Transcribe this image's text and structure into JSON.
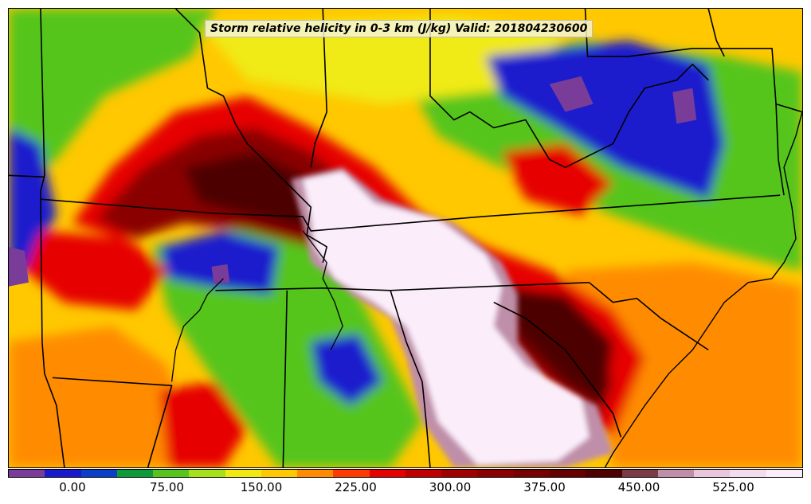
{
  "title": "Storm relative helicity in 0-3 km (J/kg) Valid: 201804230600",
  "colorbar": {
    "colors": [
      "#7a3c99",
      "#1a1acd",
      "#0a3fc8",
      "#0f9a3a",
      "#55c51e",
      "#a6e019",
      "#f0ea12",
      "#ffc800",
      "#ff8c00",
      "#ff3a00",
      "#e60000",
      "#c00000",
      "#a00000",
      "#8a0000",
      "#760000",
      "#640000",
      "#4e0000",
      "#7a3a46",
      "#bf8ea8",
      "#e8c6dc",
      "#f4dcee",
      "#fbeefa"
    ],
    "labels": [
      "0.00",
      "75.00",
      "150.00",
      "225.00",
      "300.00",
      "375.00",
      "450.00",
      "525.00"
    ]
  },
  "palette": {
    "purple": "#7a3c99",
    "blue": "#1a1acd",
    "green": "#0f9a3a",
    "lightgreen": "#55c51e",
    "yellow": "#f0ea12",
    "orange": "#ff8c00",
    "red": "#e60000",
    "darkred": "#8a0000",
    "maroon": "#4e0000",
    "white": "#fbeefa"
  }
}
